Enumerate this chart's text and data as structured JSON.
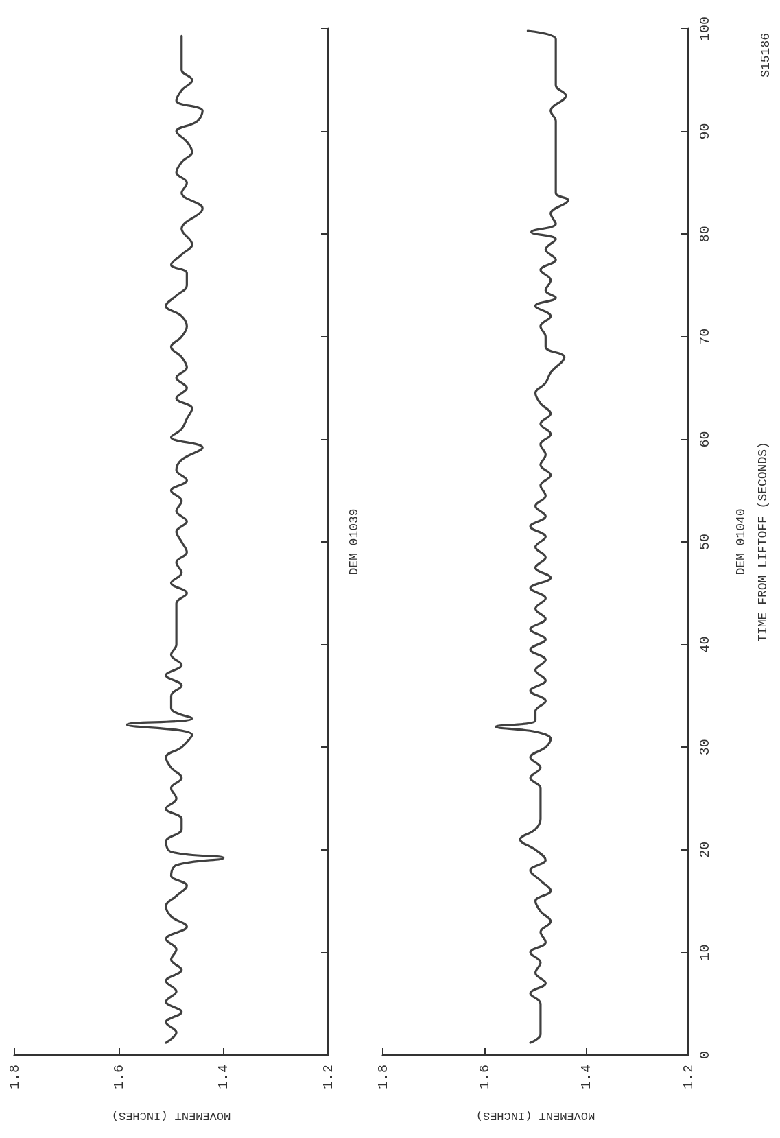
{
  "chart_data": [
    {
      "type": "line",
      "annotations": [
        "DEM 01039"
      ],
      "xlabel": "MOVEMENT (INCHES)",
      "color": "#404040",
      "ylim": [
        0,
        100
      ],
      "yticks": [
        0,
        10,
        20,
        30,
        40,
        50,
        60,
        70,
        80,
        90,
        100
      ],
      "xlim": [
        1.8,
        1.2
      ],
      "xticks": [
        1.8,
        1.6,
        1.4,
        1.2
      ],
      "tick_labels": "x",
      "values": [
        1.2,
        2.2,
        3.2,
        4.2,
        5.2,
        6.2,
        7.2,
        8.3,
        9.3,
        10.3,
        11.3,
        12.5,
        13.5,
        14.5,
        15.5,
        16.5,
        17.5,
        18.5,
        19.2,
        19.8,
        20.8,
        22,
        23,
        24,
        25,
        26,
        27,
        28,
        29,
        30,
        31.2,
        32.2,
        32.8,
        33.8,
        35,
        36,
        37,
        38,
        39,
        40,
        42,
        44,
        45,
        46,
        47,
        48,
        49,
        50,
        51,
        52,
        53,
        54,
        55,
        56,
        57,
        58,
        59.2,
        60.2,
        61,
        62,
        63,
        64,
        65,
        66,
        67,
        68,
        69,
        70,
        71,
        72,
        73,
        74,
        75,
        76.2,
        77,
        78,
        79,
        80.5,
        82.5,
        84,
        85,
        86,
        87,
        88,
        89,
        90,
        91,
        92,
        93,
        94,
        95,
        96,
        97,
        99.3
      ],
      "x": [
        1.51,
        1.49,
        1.51,
        1.48,
        1.51,
        1.49,
        1.51,
        1.48,
        1.5,
        1.49,
        1.51,
        1.47,
        1.5,
        1.51,
        1.49,
        1.47,
        1.5,
        1.49,
        1.4,
        1.5,
        1.51,
        1.48,
        1.48,
        1.51,
        1.49,
        1.5,
        1.48,
        1.5,
        1.51,
        1.48,
        1.46,
        1.585,
        1.46,
        1.5,
        1.5,
        1.48,
        1.51,
        1.48,
        1.5,
        1.49,
        1.49,
        1.49,
        1.47,
        1.5,
        1.48,
        1.49,
        1.47,
        1.48,
        1.49,
        1.47,
        1.49,
        1.48,
        1.5,
        1.47,
        1.49,
        1.48,
        1.44,
        1.5,
        1.48,
        1.47,
        1.46,
        1.49,
        1.47,
        1.49,
        1.47,
        1.48,
        1.5,
        1.48,
        1.47,
        1.48,
        1.51,
        1.49,
        1.47,
        1.47,
        1.5,
        1.48,
        1.46,
        1.48,
        1.44,
        1.48,
        1.47,
        1.49,
        1.48,
        1.46,
        1.47,
        1.49,
        1.45,
        1.44,
        1.49,
        1.48,
        1.46,
        1.48,
        1.48,
        1.48
      ]
    },
    {
      "type": "line",
      "ylabel": "TIME FROM LIFTOFF (SECONDS)",
      "xlabel": "MOVEMENT (INCHES)",
      "annotations": [
        "DEM 01040",
        "S15186"
      ],
      "color": "#404040",
      "ylim": [
        0,
        100
      ],
      "yticks": [
        0,
        10,
        20,
        30,
        40,
        50,
        60,
        70,
        80,
        90,
        100
      ],
      "xlim": [
        1.8,
        1.2
      ],
      "xticks": [
        1.8,
        1.6,
        1.4,
        1.2
      ],
      "values": [
        1.2,
        2,
        3,
        5,
        6,
        7,
        8,
        9,
        10,
        11,
        12,
        13,
        14,
        15,
        16,
        17,
        18,
        19,
        20,
        21,
        22,
        23,
        24,
        25,
        26,
        27,
        28,
        29,
        30,
        30.8,
        31.5,
        32,
        32.6,
        33.5,
        34.5,
        35.5,
        36.5,
        37.5,
        38.5,
        39.5,
        40.5,
        41.5,
        42.5,
        43.5,
        44.5,
        45.5,
        46.5,
        47.5,
        48.5,
        49.5,
        50.5,
        51.5,
        52.5,
        53.5,
        54.5,
        55.5,
        56.5,
        57.5,
        58.5,
        59.5,
        60.5,
        61.5,
        62.5,
        63.5,
        64.5,
        65.5,
        66.5,
        68,
        69,
        70,
        71,
        72,
        73,
        73.8,
        74.5,
        75.5,
        76.5,
        77.5,
        78.5,
        79.5,
        80.2,
        81,
        82,
        83.3,
        84,
        86,
        88,
        90,
        91,
        92,
        93.5,
        94.5,
        96,
        98,
        99,
        99.8
      ],
      "x": [
        1.51,
        1.49,
        1.49,
        1.49,
        1.51,
        1.48,
        1.5,
        1.49,
        1.51,
        1.48,
        1.49,
        1.47,
        1.49,
        1.5,
        1.47,
        1.49,
        1.51,
        1.48,
        1.5,
        1.53,
        1.5,
        1.49,
        1.49,
        1.49,
        1.49,
        1.51,
        1.49,
        1.51,
        1.48,
        1.47,
        1.5,
        1.578,
        1.5,
        1.5,
        1.48,
        1.51,
        1.48,
        1.5,
        1.48,
        1.51,
        1.48,
        1.51,
        1.48,
        1.5,
        1.48,
        1.51,
        1.47,
        1.5,
        1.48,
        1.5,
        1.48,
        1.51,
        1.48,
        1.5,
        1.48,
        1.49,
        1.47,
        1.49,
        1.48,
        1.49,
        1.47,
        1.49,
        1.47,
        1.49,
        1.5,
        1.48,
        1.47,
        1.443,
        1.48,
        1.48,
        1.49,
        1.47,
        1.5,
        1.46,
        1.48,
        1.47,
        1.49,
        1.46,
        1.48,
        1.46,
        1.508,
        1.46,
        1.47,
        1.436,
        1.46,
        1.46,
        1.46,
        1.46,
        1.46,
        1.47,
        1.44,
        1.46,
        1.46,
        1.46,
        1.46,
        1.515
      ]
    }
  ]
}
